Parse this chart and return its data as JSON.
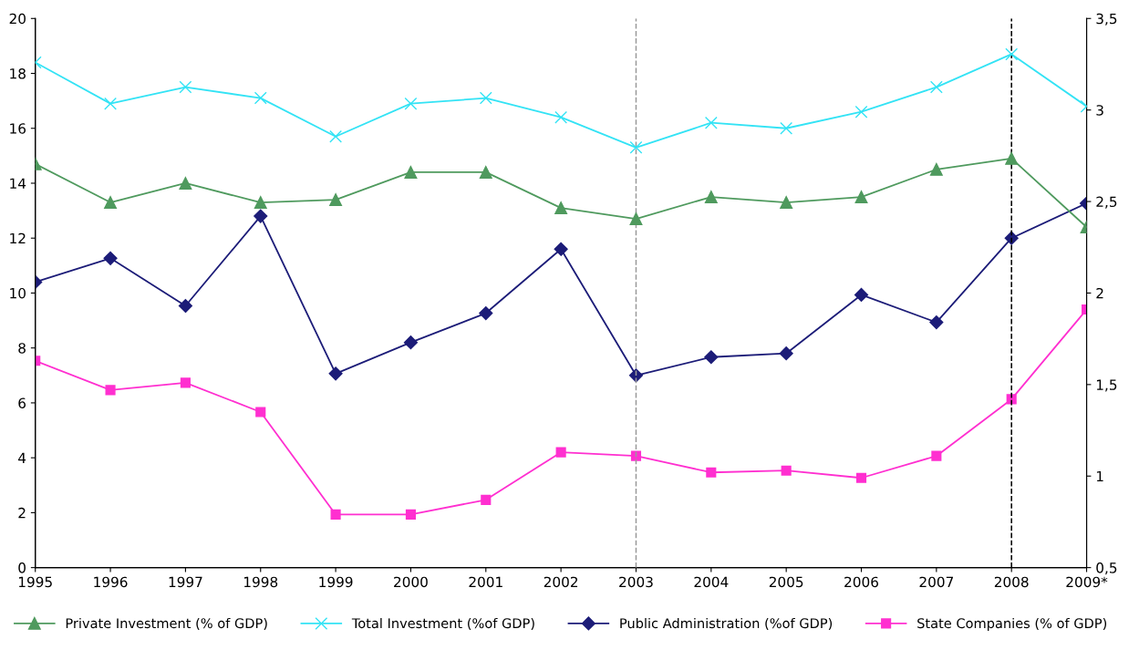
{
  "chart_data": {
    "type": "line",
    "categories": [
      "1995",
      "1996",
      "1997",
      "1998",
      "1999",
      "2000",
      "2001",
      "2002",
      "2003",
      "2004",
      "2005",
      "2006",
      "2007",
      "2008",
      "2009*"
    ],
    "series": [
      {
        "name": "Private Investment (% of GDP)",
        "color": "#4f9a5e",
        "marker": "triangle",
        "values": [
          14.7,
          13.3,
          14.0,
          13.3,
          13.4,
          14.4,
          14.4,
          13.1,
          12.7,
          13.5,
          13.3,
          13.5,
          14.5,
          14.9,
          12.4
        ]
      },
      {
        "name": "Total Investment (%of GDP)",
        "color": "#33e3f5",
        "marker": "cross",
        "values": [
          18.4,
          16.9,
          17.5,
          17.1,
          15.7,
          16.9,
          17.1,
          16.4,
          15.3,
          16.2,
          16.0,
          16.6,
          17.5,
          18.7,
          16.8
        ]
      },
      {
        "name": "Public Administration (%of GDP)",
        "color": "#1c1c78",
        "marker": "diamond",
        "axis": "y2",
        "values": [
          2.06,
          2.19,
          1.93,
          2.42,
          1.56,
          1.73,
          1.89,
          2.24,
          1.55,
          1.65,
          1.67,
          1.99,
          1.84,
          2.3,
          2.49
        ]
      },
      {
        "name": "State Companies (% of GDP)",
        "color": "#ff2fd0",
        "marker": "square",
        "axis": "y2",
        "values": [
          1.63,
          1.47,
          1.51,
          1.35,
          0.79,
          0.79,
          0.87,
          1.13,
          1.11,
          1.02,
          1.03,
          0.99,
          1.11,
          1.42,
          1.91
        ]
      }
    ],
    "ylim": [
      0,
      20
    ],
    "yticks": [
      0,
      2,
      4,
      6,
      8,
      10,
      12,
      14,
      16,
      18,
      20
    ],
    "y2lim": [
      0.5,
      3.5
    ],
    "y2ticks": [
      {
        "value": 0.5,
        "label": "0,5"
      },
      1,
      {
        "value": 1.5,
        "label": "1,5"
      },
      2,
      {
        "value": 2.5,
        "label": "2,5"
      },
      3,
      {
        "value": 3.5,
        "label": "3,5"
      }
    ],
    "ref_lines": [
      {
        "axis": "x",
        "value": "2003",
        "color": "#9a9a9a",
        "line_style": "dashed"
      },
      {
        "axis": "x",
        "value": "2008",
        "color": "#000000",
        "line_style": "dashed"
      }
    ],
    "grid": false,
    "legend": "bottom",
    "line_style": "solid"
  }
}
